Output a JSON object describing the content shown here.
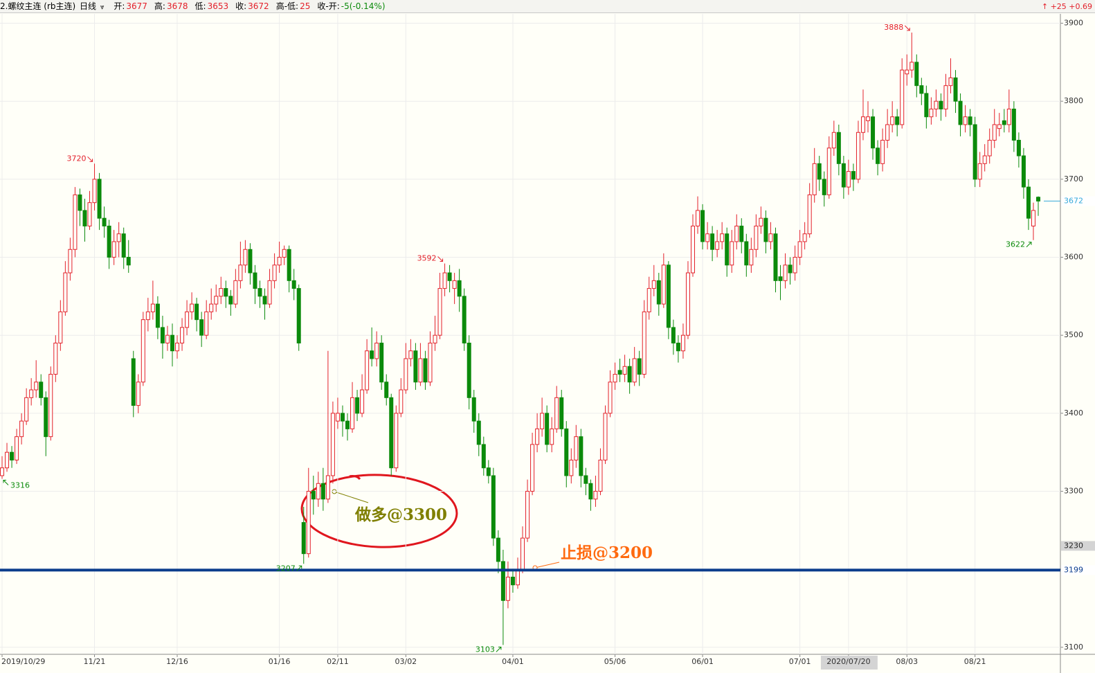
{
  "header": {
    "title": "2.螺纹主连 (rb主连)",
    "period": "日线",
    "fields": [
      {
        "label": "开:",
        "value": "3677"
      },
      {
        "label": "高:",
        "value": "3678"
      },
      {
        "label": "低:",
        "value": "3653"
      },
      {
        "label": "收:",
        "value": "3672"
      },
      {
        "label": "高-低:",
        "value": "25"
      },
      {
        "label": "收-开:",
        "value": "-5(-0.14%)"
      }
    ],
    "change": "↑ +25 +0.69"
  },
  "chart_data": {
    "type": "candlestick",
    "up_color": "#e3202a",
    "down_color": "#0b8a0b",
    "last_color": "#36a9d9",
    "grid": true,
    "ylim": [
      3091,
      3912
    ],
    "yticks": [
      3100,
      3200,
      3300,
      3400,
      3500,
      3600,
      3700,
      3800,
      3900
    ],
    "cursor_value": 3230,
    "hline": {
      "value": 3199,
      "color": "#0b3c8c"
    },
    "annotations": [
      {
        "text": "做多@3300",
        "color": "#7f7f00"
      },
      {
        "text": "止损@3200",
        "color": "#ff6a10"
      }
    ],
    "categories": [
      "2019/10/29",
      null,
      null,
      null,
      null,
      null,
      null,
      null,
      null,
      null,
      null,
      null,
      null,
      null,
      null,
      null,
      null,
      null,
      null,
      "11/21",
      null,
      null,
      null,
      null,
      null,
      null,
      null,
      null,
      null,
      null,
      null,
      null,
      null,
      null,
      null,
      null,
      "12/16",
      null,
      null,
      null,
      null,
      null,
      null,
      null,
      null,
      null,
      null,
      null,
      null,
      null,
      null,
      null,
      null,
      null,
      null,
      null,
      null,
      "01/16",
      null,
      null,
      null,
      null,
      null,
      null,
      null,
      null,
      null,
      null,
      null,
      "02/11",
      null,
      null,
      null,
      null,
      null,
      null,
      null,
      null,
      null,
      null,
      null,
      null,
      null,
      "03/02",
      null,
      null,
      null,
      null,
      null,
      null,
      null,
      null,
      null,
      null,
      null,
      null,
      null,
      null,
      null,
      null,
      null,
      null,
      null,
      null,
      null,
      "04/01",
      null,
      null,
      null,
      null,
      null,
      null,
      null,
      null,
      null,
      null,
      null,
      null,
      null,
      null,
      null,
      null,
      null,
      null,
      null,
      null,
      "05/06",
      null,
      null,
      null,
      null,
      null,
      null,
      null,
      null,
      null,
      null,
      null,
      null,
      null,
      null,
      null,
      null,
      null,
      "06/01",
      null,
      null,
      null,
      null,
      null,
      null,
      null,
      null,
      null,
      null,
      null,
      null,
      null,
      null,
      null,
      null,
      null,
      null,
      null,
      "07/01",
      null,
      null,
      null,
      null,
      null,
      null,
      null,
      null,
      null,
      "2020/07/20",
      null,
      null,
      null,
      null,
      null,
      null,
      null,
      null,
      null,
      null,
      null,
      "08/03",
      null,
      null,
      null,
      null,
      null,
      null,
      null,
      null,
      null,
      null,
      null,
      null,
      null,
      "08/21",
      null,
      null,
      null,
      null,
      null,
      null,
      null,
      null,
      null,
      null,
      null,
      null,
      null
    ],
    "candles": [
      [
        3320,
        3345,
        3316,
        3330
      ],
      [
        3330,
        3362,
        3325,
        3350
      ],
      [
        3350,
        3358,
        3330,
        3340
      ],
      [
        3340,
        3380,
        3335,
        3370
      ],
      [
        3370,
        3400,
        3360,
        3390
      ],
      [
        3390,
        3432,
        3385,
        3420
      ],
      [
        3420,
        3445,
        3410,
        3430
      ],
      [
        3430,
        3468,
        3420,
        3440
      ],
      [
        3440,
        3450,
        3410,
        3420
      ],
      [
        3420,
        3428,
        3345,
        3370
      ],
      [
        3370,
        3460,
        3365,
        3450
      ],
      [
        3450,
        3500,
        3440,
        3490
      ],
      [
        3490,
        3545,
        3480,
        3530
      ],
      [
        3530,
        3595,
        3525,
        3580
      ],
      [
        3580,
        3625,
        3570,
        3610
      ],
      [
        3610,
        3690,
        3600,
        3680
      ],
      [
        3680,
        3688,
        3640,
        3660
      ],
      [
        3660,
        3675,
        3620,
        3640
      ],
      [
        3640,
        3685,
        3635,
        3670
      ],
      [
        3670,
        3720,
        3660,
        3700
      ],
      [
        3700,
        3708,
        3635,
        3650
      ],
      [
        3650,
        3665,
        3625,
        3640
      ],
      [
        3640,
        3648,
        3585,
        3600
      ],
      [
        3600,
        3635,
        3590,
        3620
      ],
      [
        3620,
        3645,
        3600,
        3630
      ],
      [
        3630,
        3638,
        3585,
        3600
      ],
      [
        3600,
        3622,
        3580,
        3590
      ],
      [
        3470,
        3480,
        3395,
        3410
      ],
      [
        3410,
        3450,
        3400,
        3440
      ],
      [
        3440,
        3530,
        3435,
        3520
      ],
      [
        3520,
        3548,
        3505,
        3530
      ],
      [
        3530,
        3570,
        3520,
        3540
      ],
      [
        3540,
        3550,
        3495,
        3510
      ],
      [
        3510,
        3525,
        3470,
        3490
      ],
      [
        3490,
        3512,
        3480,
        3500
      ],
      [
        3500,
        3515,
        3460,
        3480
      ],
      [
        3480,
        3500,
        3470,
        3490
      ],
      [
        3490,
        3522,
        3480,
        3510
      ],
      [
        3510,
        3545,
        3500,
        3530
      ],
      [
        3530,
        3555,
        3520,
        3540
      ],
      [
        3540,
        3548,
        3505,
        3520
      ],
      [
        3520,
        3530,
        3485,
        3500
      ],
      [
        3500,
        3545,
        3495,
        3530
      ],
      [
        3530,
        3560,
        3520,
        3540
      ],
      [
        3540,
        3565,
        3530,
        3550
      ],
      [
        3550,
        3575,
        3540,
        3560
      ],
      [
        3560,
        3570,
        3535,
        3550
      ],
      [
        3550,
        3558,
        3525,
        3540
      ],
      [
        3540,
        3585,
        3535,
        3570
      ],
      [
        3570,
        3620,
        3560,
        3590
      ],
      [
        3590,
        3622,
        3580,
        3610
      ],
      [
        3610,
        3618,
        3565,
        3580
      ],
      [
        3580,
        3590,
        3540,
        3560
      ],
      [
        3560,
        3570,
        3535,
        3550
      ],
      [
        3550,
        3560,
        3520,
        3540
      ],
      [
        3540,
        3585,
        3535,
        3570
      ],
      [
        3570,
        3605,
        3560,
        3590
      ],
      [
        3590,
        3620,
        3580,
        3600
      ],
      [
        3600,
        3615,
        3590,
        3610
      ],
      [
        3610,
        3615,
        3555,
        3570
      ],
      [
        3570,
        3585,
        3545,
        3560
      ],
      [
        3560,
        3565,
        3480,
        3490
      ],
      [
        3260,
        3280,
        3207,
        3220
      ],
      [
        3220,
        3330,
        3215,
        3300
      ],
      [
        3300,
        3320,
        3270,
        3290
      ],
      [
        3290,
        3325,
        3280,
        3310
      ],
      [
        3310,
        3330,
        3275,
        3290
      ],
      [
        3290,
        3480,
        3285,
        3320
      ],
      [
        3320,
        3415,
        3310,
        3400
      ],
      [
        3390,
        3420,
        3380,
        3400
      ],
      [
        3400,
        3410,
        3370,
        3390
      ],
      [
        3390,
        3400,
        3365,
        3380
      ],
      [
        3380,
        3440,
        3375,
        3420
      ],
      [
        3420,
        3430,
        3390,
        3400
      ],
      [
        3400,
        3450,
        3395,
        3430
      ],
      [
        3430,
        3495,
        3425,
        3480
      ],
      [
        3480,
        3510,
        3460,
        3470
      ],
      [
        3470,
        3505,
        3460,
        3490
      ],
      [
        3490,
        3500,
        3430,
        3440
      ],
      [
        3440,
        3450,
        3410,
        3420
      ],
      [
        3420,
        3425,
        3320,
        3330
      ],
      [
        3330,
        3410,
        3325,
        3400
      ],
      [
        3400,
        3445,
        3395,
        3430
      ],
      [
        3430,
        3490,
        3425,
        3470
      ],
      [
        3470,
        3495,
        3460,
        3480
      ],
      [
        3480,
        3490,
        3430,
        3440
      ],
      [
        3440,
        3490,
        3435,
        3470
      ],
      [
        3470,
        3480,
        3430,
        3440
      ],
      [
        3440,
        3505,
        3435,
        3490
      ],
      [
        3490,
        3525,
        3480,
        3500
      ],
      [
        3500,
        3580,
        3495,
        3560
      ],
      [
        3560,
        3592,
        3550,
        3580
      ],
      [
        3580,
        3590,
        3555,
        3570
      ],
      [
        3560,
        3580,
        3540,
        3570
      ],
      [
        3570,
        3585,
        3530,
        3550
      ],
      [
        3550,
        3560,
        3480,
        3490
      ],
      [
        3490,
        3500,
        3405,
        3420
      ],
      [
        3420,
        3430,
        3375,
        3390
      ],
      [
        3390,
        3400,
        3345,
        3360
      ],
      [
        3360,
        3370,
        3320,
        3330
      ],
      [
        3330,
        3340,
        3310,
        3320
      ],
      [
        3320,
        3330,
        3230,
        3240
      ],
      [
        3240,
        3250,
        3195,
        3210
      ],
      [
        3210,
        3225,
        3103,
        3160
      ],
      [
        3160,
        3210,
        3150,
        3190
      ],
      [
        3190,
        3200,
        3170,
        3180
      ],
      [
        3180,
        3215,
        3175,
        3200
      ],
      [
        3200,
        3255,
        3195,
        3240
      ],
      [
        3240,
        3315,
        3235,
        3300
      ],
      [
        3300,
        3375,
        3295,
        3360
      ],
      [
        3360,
        3400,
        3350,
        3380
      ],
      [
        3380,
        3420,
        3370,
        3400
      ],
      [
        3400,
        3410,
        3350,
        3360
      ],
      [
        3360,
        3395,
        3350,
        3380
      ],
      [
        3380,
        3435,
        3375,
        3420
      ],
      [
        3420,
        3430,
        3370,
        3380
      ],
      [
        3380,
        3390,
        3305,
        3320
      ],
      [
        3320,
        3355,
        3310,
        3340
      ],
      [
        3340,
        3385,
        3330,
        3370
      ],
      [
        3370,
        3380,
        3305,
        3320
      ],
      [
        3320,
        3330,
        3295,
        3310
      ],
      [
        3310,
        3315,
        3275,
        3290
      ],
      [
        3290,
        3320,
        3280,
        3300
      ],
      [
        3300,
        3355,
        3295,
        3340
      ],
      [
        3340,
        3410,
        3335,
        3400
      ],
      [
        3400,
        3455,
        3395,
        3440
      ],
      [
        3440,
        3465,
        3430,
        3450
      ],
      [
        3455,
        3470,
        3440,
        3450
      ],
      [
        3450,
        3475,
        3440,
        3460
      ],
      [
        3460,
        3470,
        3425,
        3440
      ],
      [
        3440,
        3485,
        3435,
        3470
      ],
      [
        3470,
        3480,
        3435,
        3450
      ],
      [
        3450,
        3545,
        3445,
        3530
      ],
      [
        3530,
        3575,
        3520,
        3560
      ],
      [
        3560,
        3590,
        3550,
        3570
      ],
      [
        3570,
        3580,
        3525,
        3540
      ],
      [
        3540,
        3605,
        3535,
        3590
      ],
      [
        3590,
        3595,
        3495,
        3510
      ],
      [
        3510,
        3520,
        3475,
        3490
      ],
      [
        3490,
        3500,
        3465,
        3480
      ],
      [
        3480,
        3515,
        3470,
        3500
      ],
      [
        3500,
        3595,
        3495,
        3580
      ],
      [
        3580,
        3655,
        3575,
        3640
      ],
      [
        3640,
        3678,
        3630,
        3660
      ],
      [
        3660,
        3668,
        3610,
        3620
      ],
      [
        3620,
        3645,
        3610,
        3630
      ],
      [
        3630,
        3640,
        3595,
        3610
      ],
      [
        3610,
        3635,
        3600,
        3620
      ],
      [
        3620,
        3645,
        3610,
        3630
      ],
      [
        3630,
        3638,
        3575,
        3590
      ],
      [
        3590,
        3635,
        3580,
        3620
      ],
      [
        3620,
        3655,
        3610,
        3640
      ],
      [
        3640,
        3650,
        3605,
        3620
      ],
      [
        3620,
        3630,
        3575,
        3590
      ],
      [
        3590,
        3625,
        3580,
        3610
      ],
      [
        3610,
        3655,
        3600,
        3640
      ],
      [
        3640,
        3665,
        3630,
        3650
      ],
      [
        3650,
        3660,
        3605,
        3620
      ],
      [
        3620,
        3645,
        3610,
        3630
      ],
      [
        3630,
        3638,
        3555,
        3570
      ],
      [
        3575,
        3590,
        3545,
        3570
      ],
      [
        3570,
        3605,
        3560,
        3590
      ],
      [
        3590,
        3600,
        3565,
        3580
      ],
      [
        3580,
        3615,
        3570,
        3600
      ],
      [
        3600,
        3635,
        3590,
        3620
      ],
      [
        3620,
        3645,
        3610,
        3630
      ],
      [
        3630,
        3695,
        3625,
        3680
      ],
      [
        3680,
        3740,
        3670,
        3720
      ],
      [
        3720,
        3730,
        3685,
        3700
      ],
      [
        3700,
        3710,
        3665,
        3680
      ],
      [
        3680,
        3755,
        3675,
        3740
      ],
      [
        3740,
        3775,
        3730,
        3760
      ],
      [
        3760,
        3770,
        3705,
        3720
      ],
      [
        3720,
        3730,
        3675,
        3690
      ],
      [
        3690,
        3725,
        3680,
        3710
      ],
      [
        3710,
        3720,
        3685,
        3700
      ],
      [
        3700,
        3775,
        3695,
        3760
      ],
      [
        3760,
        3815,
        3750,
        3780
      ],
      [
        3775,
        3800,
        3760,
        3780
      ],
      [
        3780,
        3790,
        3725,
        3740
      ],
      [
        3740,
        3750,
        3705,
        3720
      ],
      [
        3720,
        3765,
        3710,
        3750
      ],
      [
        3750,
        3790,
        3740,
        3770
      ],
      [
        3770,
        3800,
        3760,
        3780
      ],
      [
        3780,
        3790,
        3755,
        3770
      ],
      [
        3770,
        3855,
        3765,
        3840
      ],
      [
        3835,
        3860,
        3820,
        3840
      ],
      [
        3840,
        3888,
        3830,
        3850
      ],
      [
        3850,
        3860,
        3805,
        3820
      ],
      [
        3820,
        3830,
        3795,
        3810
      ],
      [
        3810,
        3820,
        3765,
        3780
      ],
      [
        3780,
        3805,
        3770,
        3790
      ],
      [
        3790,
        3815,
        3780,
        3800
      ],
      [
        3800,
        3810,
        3775,
        3790
      ],
      [
        3790,
        3835,
        3780,
        3820
      ],
      [
        3820,
        3855,
        3810,
        3830
      ],
      [
        3830,
        3840,
        3785,
        3800
      ],
      [
        3800,
        3810,
        3755,
        3770
      ],
      [
        3770,
        3795,
        3760,
        3780
      ],
      [
        3780,
        3790,
        3755,
        3770
      ],
      [
        3770,
        3780,
        3690,
        3700
      ],
      [
        3700,
        3735,
        3690,
        3720
      ],
      [
        3720,
        3745,
        3710,
        3730
      ],
      [
        3730,
        3765,
        3720,
        3750
      ],
      [
        3750,
        3790,
        3740,
        3770
      ],
      [
        3765,
        3785,
        3755,
        3770
      ],
      [
        3775,
        3790,
        3760,
        3770
      ],
      [
        3770,
        3815,
        3760,
        3790
      ],
      [
        3790,
        3800,
        3735,
        3750
      ],
      [
        3750,
        3760,
        3715,
        3730
      ],
      [
        3730,
        3740,
        3675,
        3690
      ],
      [
        3690,
        3700,
        3635,
        3650
      ],
      [
        3640,
        3670,
        3622,
        3660
      ],
      [
        3677,
        3678,
        3653,
        3672
      ]
    ]
  }
}
